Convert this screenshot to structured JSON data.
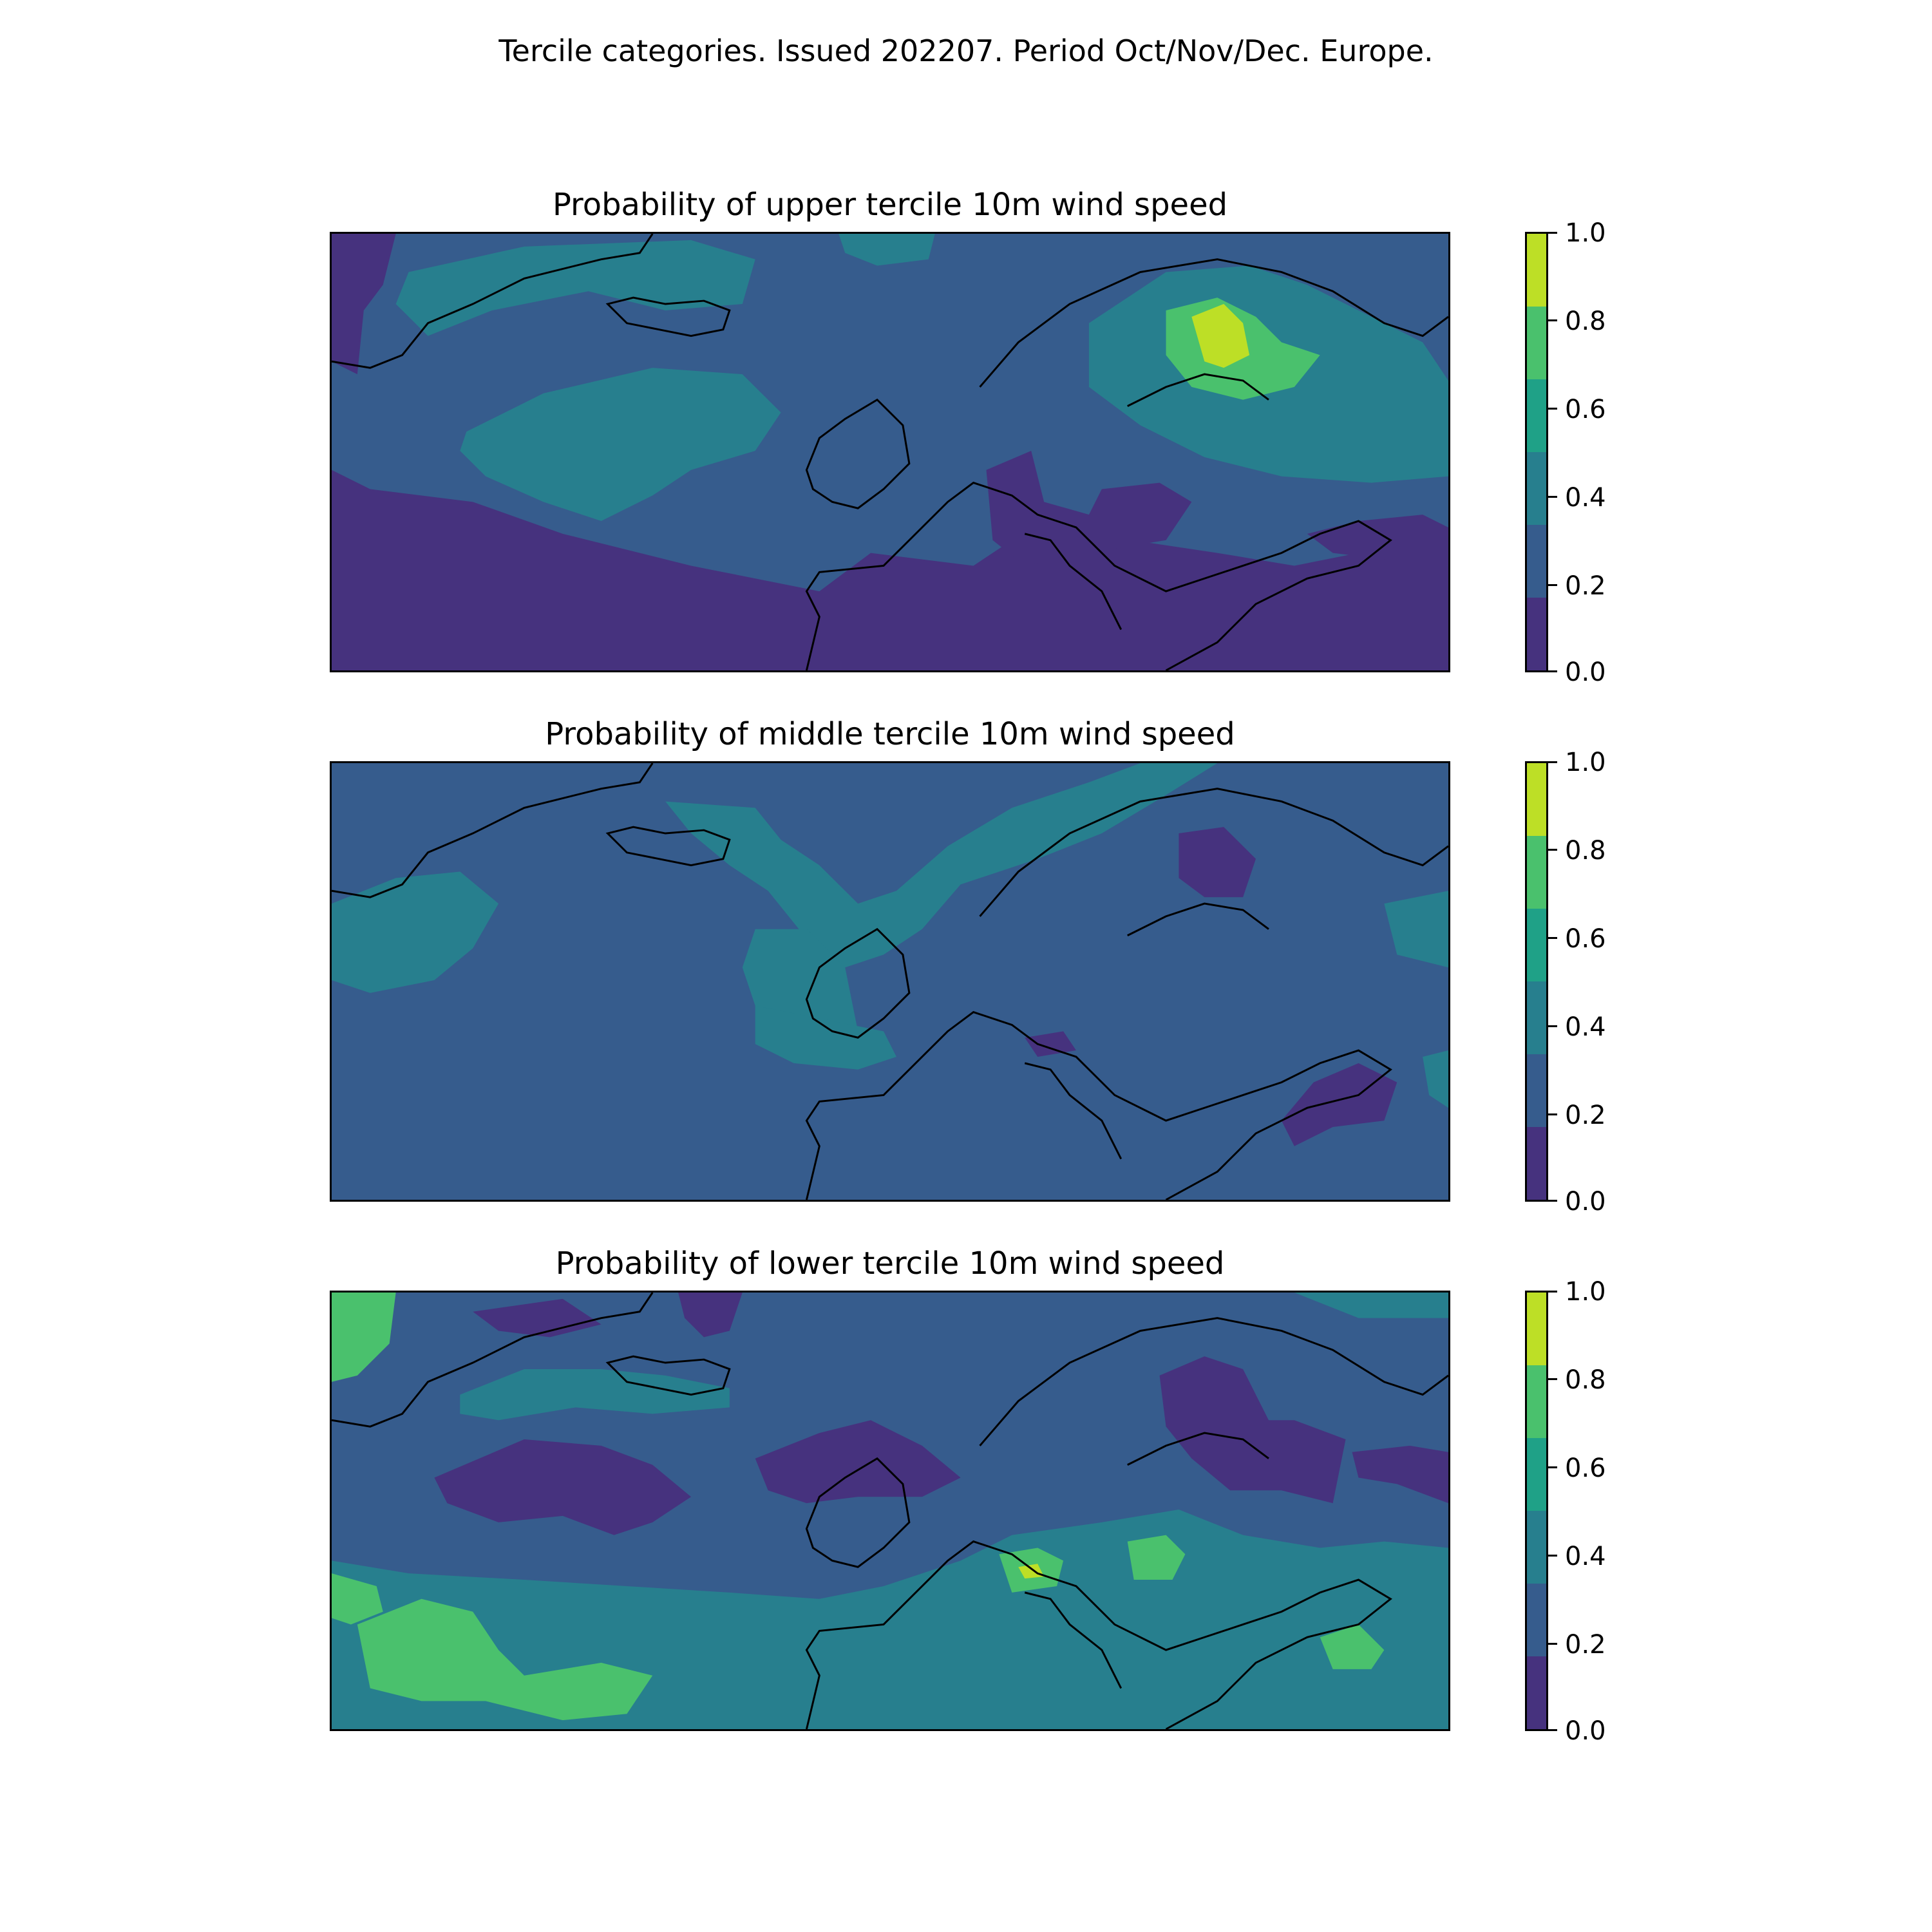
{
  "figure": {
    "suptitle": "Tercile categories. Issued 202207. Period Oct/Nov/Dec. Europe."
  },
  "panels": [
    {
      "title": "Probability of upper tercile 10m wind speed"
    },
    {
      "title": "Probability of middle tercile 10m wind speed"
    },
    {
      "title": "Probability of lower tercile 10m wind speed"
    }
  ],
  "colorbar": {
    "ticks": [
      "1.0",
      "0.8",
      "0.6",
      "0.4",
      "0.2",
      "0.0"
    ],
    "levels": [
      0.0,
      0.2,
      0.4,
      0.6,
      0.8,
      1.0
    ],
    "colors": [
      "#46327e",
      "#365c8d",
      "#277f8e",
      "#1fa187",
      "#4ac16d",
      "#bddf26"
    ]
  },
  "colors": {
    "coastline": "#000000"
  }
}
